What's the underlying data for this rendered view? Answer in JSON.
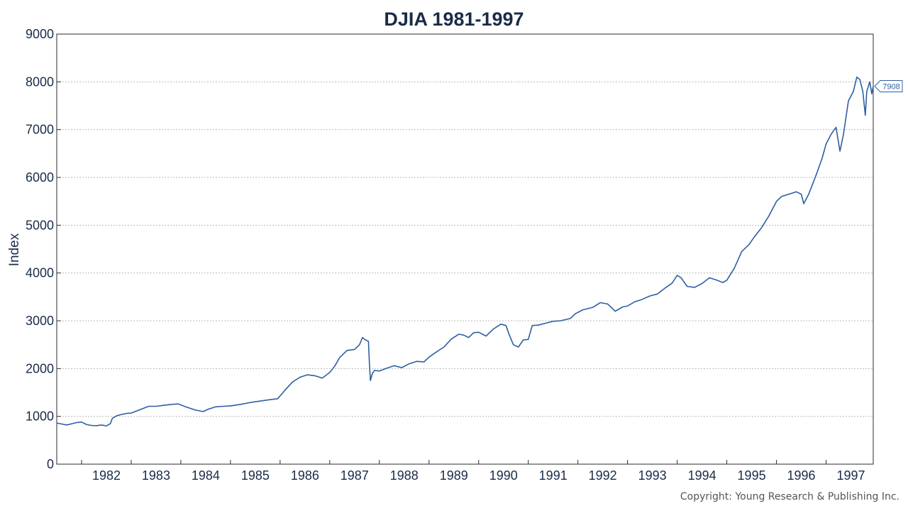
{
  "colors": {
    "series": "#2e5fa3",
    "grid": "#b9b9b9",
    "axis": "#2b2b2b",
    "text": "#1a2b47"
  },
  "chart_data": {
    "type": "line",
    "title": "DJIA 1981-1997",
    "xlabel": "",
    "ylabel": "Index",
    "ylim": [
      0,
      9000
    ],
    "xlim": [
      1981.5,
      1997.95
    ],
    "yticks": [
      0,
      1000,
      2000,
      3000,
      4000,
      5000,
      6000,
      7000,
      8000,
      9000
    ],
    "ytick_labels": [
      "0",
      "1000",
      "2000",
      "3000",
      "4000",
      "5000",
      "6000",
      "7000",
      "8000",
      "9000"
    ],
    "xtick_labels": [
      "1982",
      "1983",
      "1984",
      "1985",
      "1986",
      "1987",
      "1988",
      "1989",
      "1990",
      "1991",
      "1992",
      "1993",
      "1994",
      "1995",
      "1996",
      "1997"
    ],
    "year_ticks": [
      1982,
      1983,
      1984,
      1985,
      1986,
      1987,
      1988,
      1989,
      1990,
      1991,
      1992,
      1993,
      1994,
      1995,
      1996,
      1997,
      1998
    ],
    "grid": true,
    "last_value_label": "7908",
    "series": [
      {
        "x": [
          1981.5,
          1981.6,
          1981.7,
          1981.8,
          1981.9,
          1982.0,
          1982.1,
          1982.2,
          1982.3,
          1982.4,
          1982.5,
          1982.58,
          1982.62,
          1982.7,
          1982.8,
          1982.9,
          1983.0,
          1983.1,
          1983.2,
          1983.35,
          1983.5,
          1983.65,
          1983.8,
          1983.95,
          1984.1,
          1984.3,
          1984.45,
          1984.55,
          1984.7,
          1984.85,
          1985.0,
          1985.2,
          1985.4,
          1985.6,
          1985.8,
          1985.95,
          1986.1,
          1986.25,
          1986.4,
          1986.55,
          1986.7,
          1986.85,
          1987.0,
          1987.1,
          1987.2,
          1987.35,
          1987.5,
          1987.6,
          1987.66,
          1987.72,
          1987.78,
          1987.8,
          1987.82,
          1987.86,
          1987.9,
          1988.0,
          1988.15,
          1988.3,
          1988.45,
          1988.6,
          1988.75,
          1988.9,
          1989.0,
          1989.15,
          1989.3,
          1989.45,
          1989.6,
          1989.7,
          1989.8,
          1989.9,
          1990.0,
          1990.15,
          1990.3,
          1990.45,
          1990.55,
          1990.62,
          1990.7,
          1990.8,
          1990.9,
          1991.0,
          1991.08,
          1991.2,
          1991.35,
          1991.5,
          1991.65,
          1991.85,
          1991.95,
          1992.1,
          1992.3,
          1992.45,
          1992.6,
          1992.75,
          1992.9,
          1993.0,
          1993.15,
          1993.3,
          1993.45,
          1993.6,
          1993.75,
          1993.9,
          1994.0,
          1994.08,
          1994.2,
          1994.35,
          1994.5,
          1994.65,
          1994.8,
          1994.92,
          1995.0,
          1995.15,
          1995.3,
          1995.45,
          1995.55,
          1995.7,
          1995.85,
          1996.0,
          1996.1,
          1996.25,
          1996.4,
          1996.5,
          1996.55,
          1996.65,
          1996.8,
          1996.92,
          1997.0,
          1997.1,
          1997.2,
          1997.28,
          1997.35,
          1997.45,
          1997.55,
          1997.62,
          1997.68,
          1997.74,
          1997.79,
          1997.82,
          1997.88,
          1997.92,
          1997.95
        ],
        "values": [
          860,
          840,
          820,
          845,
          870,
          880,
          830,
          810,
          805,
          820,
          800,
          850,
          960,
          1010,
          1040,
          1060,
          1070,
          1110,
          1150,
          1210,
          1210,
          1230,
          1250,
          1260,
          1200,
          1130,
          1100,
          1150,
          1200,
          1210,
          1220,
          1250,
          1290,
          1320,
          1350,
          1370,
          1550,
          1720,
          1820,
          1870,
          1850,
          1800,
          1920,
          2050,
          2230,
          2380,
          2400,
          2500,
          2650,
          2600,
          2570,
          2100,
          1750,
          1900,
          1960,
          1950,
          2010,
          2060,
          2020,
          2100,
          2150,
          2140,
          2240,
          2350,
          2450,
          2620,
          2720,
          2700,
          2650,
          2750,
          2760,
          2680,
          2830,
          2930,
          2900,
          2700,
          2500,
          2450,
          2600,
          2610,
          2900,
          2910,
          2950,
          2990,
          3000,
          3050,
          3150,
          3230,
          3280,
          3380,
          3350,
          3200,
          3290,
          3310,
          3400,
          3450,
          3520,
          3560,
          3680,
          3790,
          3950,
          3900,
          3720,
          3700,
          3780,
          3900,
          3850,
          3800,
          3850,
          4100,
          4450,
          4600,
          4750,
          4950,
          5200,
          5500,
          5600,
          5650,
          5700,
          5650,
          5450,
          5650,
          6050,
          6400,
          6700,
          6900,
          7050,
          6550,
          6900,
          7600,
          7800,
          8100,
          8050,
          7800,
          7300,
          7800,
          8000,
          7750,
          7908
        ]
      }
    ]
  },
  "footer": {
    "copyright": "Copyright: Young Research & Publishing Inc."
  }
}
